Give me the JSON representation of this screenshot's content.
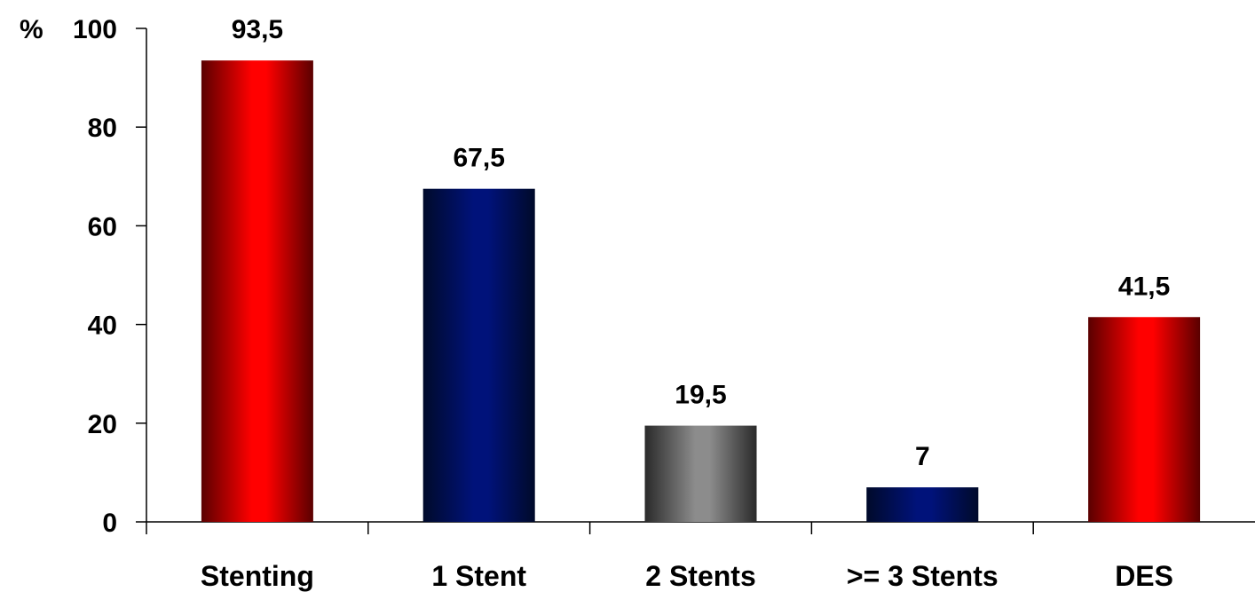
{
  "chart_data": {
    "type": "bar",
    "y_unit_label": "%",
    "categories": [
      "Stenting",
      "1 Stent",
      "2 Stents",
      ">= 3 Stents",
      "DES"
    ],
    "values": [
      93.5,
      67.5,
      19.5,
      7,
      41.5
    ],
    "value_labels": [
      "93,5",
      "67,5",
      "19,5",
      "7",
      "41,5"
    ],
    "y_ticks": [
      0,
      20,
      40,
      60,
      80,
      100
    ],
    "y_tick_labels": [
      "0",
      "20",
      "40",
      "60",
      "80",
      "100"
    ],
    "ylim": [
      0,
      100
    ],
    "grid": false,
    "legend": "none",
    "colors": {
      "red": [
        "#5a0000",
        "#ff0000",
        "#5a0000"
      ],
      "navy": [
        "#000a2a",
        "#00127a",
        "#000a2a"
      ],
      "gray": [
        "#2a2a2a",
        "#8c8c8c",
        "#2a2a2a"
      ]
    },
    "bar_colors": [
      "red",
      "navy",
      "gray",
      "navy",
      "red"
    ]
  }
}
